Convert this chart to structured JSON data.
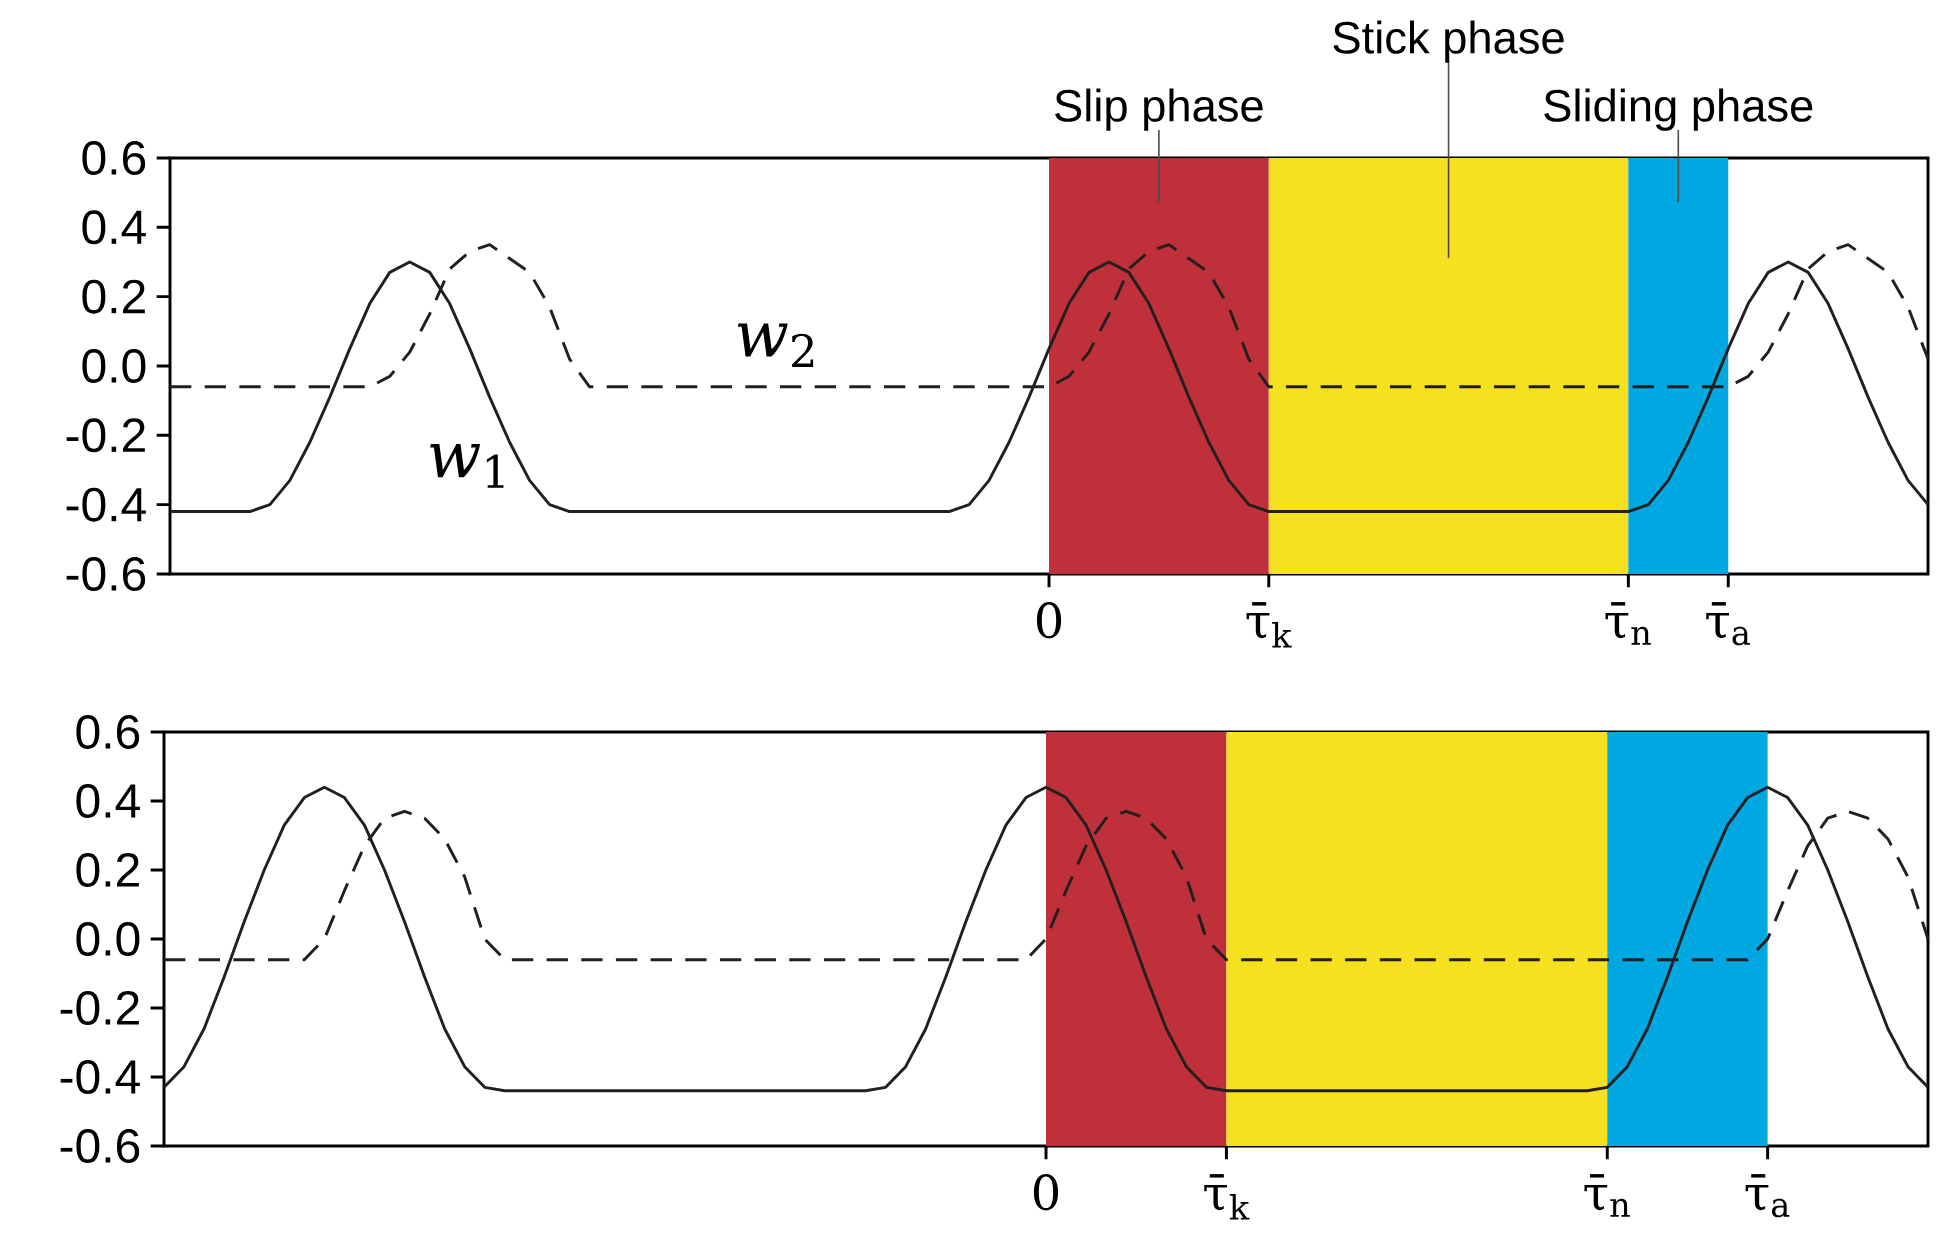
{
  "chart_data": [
    {
      "type": "line",
      "ylim": [
        -0.6,
        0.6
      ],
      "categories": [
        null,
        null,
        null,
        null,
        null,
        null,
        null,
        null,
        null,
        null,
        null,
        null,
        null,
        null,
        null,
        null,
        null,
        null,
        null,
        null,
        null,
        null,
        null,
        null,
        null,
        null,
        null,
        null,
        null,
        null,
        null,
        null,
        null,
        null,
        null,
        null,
        null,
        null,
        null,
        null,
        null,
        null,
        null,
        null,
        "0",
        null,
        null,
        null,
        null,
        null,
        null,
        null,
        null,
        null,
        null,
        "τ̄$_{k}$",
        null,
        null,
        null,
        null,
        null,
        null,
        null,
        null,
        null,
        null,
        null,
        null,
        null,
        null,
        null,
        null,
        null,
        "τ̄$_{n}$",
        null,
        null,
        null,
        null,
        "τ̄$_{a}$",
        null,
        null,
        null,
        null,
        null,
        null,
        null,
        null,
        null,
        null
      ],
      "yticks": [
        -0.6,
        -0.4,
        -0.2,
        {
          "value": 0,
          "label": "0.0"
        },
        0.2,
        0.4,
        0.6
      ],
      "bands": [
        {
          "axis": "x",
          "from": "0",
          "to": "τ̄$_{k}$",
          "label": "Slip phase",
          "color": "#c0303a"
        },
        {
          "axis": "x",
          "from": "τ̄$_{k}$",
          "to": "τ̄$_{n}$",
          "label": "Stick phase",
          "color": "#f5e11f"
        },
        {
          "axis": "x",
          "from": "τ̄$_{n}$",
          "to": "τ̄$_{a}$",
          "label": "Sliding phase",
          "color": "#00a8e1"
        }
      ],
      "series": [
        {
          "name": "*w*$_{1}$",
          "color": "#231f20",
          "line_style": "solid",
          "values": [
            -0.42,
            -0.42,
            -0.42,
            -0.42,
            -0.42,
            -0.4,
            -0.33,
            -0.22,
            -0.09,
            0.05,
            0.18,
            0.27,
            0.3,
            0.27,
            0.18,
            0.05,
            -0.09,
            -0.22,
            -0.33,
            -0.4,
            -0.42,
            -0.42,
            -0.42,
            -0.42,
            -0.42,
            -0.42,
            -0.42,
            -0.42,
            -0.42,
            -0.42,
            -0.42,
            -0.42,
            -0.42,
            -0.42,
            -0.42,
            -0.42,
            -0.42,
            -0.42,
            -0.42,
            -0.42,
            -0.4,
            -0.33,
            -0.22,
            -0.09,
            0.05,
            0.18,
            0.27,
            0.3,
            0.27,
            0.18,
            0.05,
            -0.09,
            -0.22,
            -0.33,
            -0.4,
            -0.42,
            -0.42,
            -0.42,
            -0.42,
            -0.42,
            -0.42,
            -0.42,
            -0.42,
            -0.42,
            -0.42,
            -0.42,
            -0.42,
            -0.42,
            -0.42,
            -0.42,
            -0.42,
            -0.42,
            -0.42,
            -0.42,
            -0.4,
            -0.33,
            -0.22,
            -0.09,
            0.05,
            0.18,
            0.27,
            0.3,
            0.27,
            0.18,
            0.05,
            -0.09,
            -0.22,
            -0.33,
            -0.4
          ]
        },
        {
          "name": "*w*$_{2}$",
          "color": "#231f20",
          "line_style": "dashed",
          "values": [
            -0.06,
            -0.06,
            -0.06,
            -0.06,
            -0.06,
            -0.06,
            -0.06,
            -0.06,
            -0.06,
            -0.06,
            -0.06,
            -0.03,
            0.04,
            0.15,
            0.28,
            0.33,
            0.35,
            0.31,
            0.27,
            0.17,
            0.02,
            -0.06,
            -0.06,
            -0.06,
            -0.06,
            -0.06,
            -0.06,
            -0.06,
            -0.06,
            -0.06,
            -0.06,
            -0.06,
            -0.06,
            -0.06,
            -0.06,
            -0.06,
            -0.06,
            -0.06,
            -0.06,
            -0.06,
            -0.06,
            -0.06,
            -0.06,
            -0.06,
            -0.06,
            -0.03,
            0.04,
            0.15,
            0.28,
            0.33,
            0.35,
            0.31,
            0.27,
            0.17,
            0.02,
            -0.06,
            -0.06,
            -0.06,
            -0.06,
            -0.06,
            -0.06,
            -0.06,
            -0.06,
            -0.06,
            -0.06,
            -0.06,
            -0.06,
            -0.06,
            -0.06,
            -0.06,
            -0.06,
            -0.06,
            -0.06,
            -0.06,
            -0.06,
            -0.06,
            -0.06,
            -0.06,
            -0.06,
            -0.03,
            0.04,
            0.15,
            0.28,
            0.33,
            0.35,
            0.31,
            0.27,
            0.17,
            0.02
          ]
        }
      ]
    },
    {
      "type": "line",
      "ylim": [
        -0.6,
        0.6
      ],
      "categories": [
        null,
        null,
        null,
        null,
        null,
        null,
        null,
        null,
        null,
        null,
        null,
        null,
        null,
        null,
        null,
        null,
        null,
        null,
        null,
        null,
        null,
        null,
        null,
        null,
        null,
        null,
        null,
        null,
        null,
        null,
        null,
        null,
        null,
        null,
        null,
        null,
        null,
        null,
        null,
        null,
        null,
        null,
        null,
        null,
        "0",
        null,
        null,
        null,
        null,
        null,
        null,
        null,
        null,
        "τ̄$_{k}$",
        null,
        null,
        null,
        null,
        null,
        null,
        null,
        null,
        null,
        null,
        null,
        null,
        null,
        null,
        null,
        null,
        null,
        null,
        "τ̄$_{n}$",
        null,
        null,
        null,
        null,
        null,
        null,
        null,
        "τ̄$_{a}$",
        null,
        null,
        null,
        null,
        null,
        null,
        null,
        null
      ],
      "yticks": [
        -0.6,
        -0.4,
        -0.2,
        {
          "value": 0,
          "label": "0.0"
        },
        0.2,
        0.4,
        0.6
      ],
      "bands": [
        {
          "axis": "x",
          "from": "0",
          "to": "τ̄$_{k}$",
          "color": "#c0303a"
        },
        {
          "axis": "x",
          "from": "τ̄$_{k}$",
          "to": "τ̄$_{n}$",
          "color": "#f5e11f"
        },
        {
          "axis": "x",
          "from": "τ̄$_{n}$",
          "to": "τ̄$_{a}$",
          "color": "#00a8e1"
        }
      ],
      "series": [
        {
          "color": "#231f20",
          "line_style": "solid",
          "values": [
            -0.43,
            -0.37,
            -0.26,
            -0.11,
            0.05,
            0.2,
            0.33,
            0.41,
            0.44,
            0.41,
            0.33,
            0.2,
            0.05,
            -0.11,
            -0.26,
            -0.37,
            -0.43,
            -0.44,
            -0.44,
            -0.44,
            -0.44,
            -0.44,
            -0.44,
            -0.44,
            -0.44,
            -0.44,
            -0.44,
            -0.44,
            -0.44,
            -0.44,
            -0.44,
            -0.44,
            -0.44,
            -0.44,
            -0.44,
            -0.44,
            -0.43,
            -0.37,
            -0.26,
            -0.11,
            0.05,
            0.2,
            0.33,
            0.41,
            0.44,
            0.41,
            0.33,
            0.2,
            0.05,
            -0.11,
            -0.26,
            -0.37,
            -0.43,
            -0.44,
            -0.44,
            -0.44,
            -0.44,
            -0.44,
            -0.44,
            -0.44,
            -0.44,
            -0.44,
            -0.44,
            -0.44,
            -0.44,
            -0.44,
            -0.44,
            -0.44,
            -0.44,
            -0.44,
            -0.44,
            -0.44,
            -0.43,
            -0.37,
            -0.26,
            -0.11,
            0.05,
            0.2,
            0.33,
            0.41,
            0.44,
            0.41,
            0.33,
            0.2,
            0.05,
            -0.11,
            -0.26,
            -0.37,
            -0.43
          ]
        },
        {
          "color": "#231f20",
          "line_style": "dashed",
          "values": [
            -0.06,
            -0.06,
            -0.06,
            -0.06,
            -0.06,
            -0.06,
            -0.06,
            -0.06,
            0.0,
            0.14,
            0.27,
            0.35,
            0.37,
            0.35,
            0.29,
            0.18,
            0.0,
            -0.06,
            -0.06,
            -0.06,
            -0.06,
            -0.06,
            -0.06,
            -0.06,
            -0.06,
            -0.06,
            -0.06,
            -0.06,
            -0.06,
            -0.06,
            -0.06,
            -0.06,
            -0.06,
            -0.06,
            -0.06,
            -0.06,
            -0.06,
            -0.06,
            -0.06,
            -0.06,
            -0.06,
            -0.06,
            -0.06,
            -0.06,
            0.0,
            0.14,
            0.27,
            0.35,
            0.37,
            0.35,
            0.29,
            0.18,
            0.0,
            -0.06,
            -0.06,
            -0.06,
            -0.06,
            -0.06,
            -0.06,
            -0.06,
            -0.06,
            -0.06,
            -0.06,
            -0.06,
            -0.06,
            -0.06,
            -0.06,
            -0.06,
            -0.06,
            -0.06,
            -0.06,
            -0.06,
            -0.06,
            -0.06,
            -0.06,
            -0.06,
            -0.06,
            -0.06,
            -0.06,
            -0.06,
            0.0,
            0.14,
            0.27,
            0.35,
            0.37,
            0.35,
            0.29,
            0.18,
            0.0
          ]
        }
      ]
    }
  ]
}
